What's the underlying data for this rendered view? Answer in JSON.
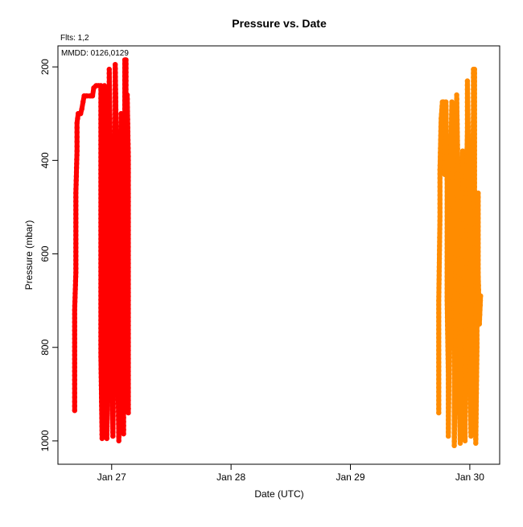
{
  "chart_data": {
    "type": "scatter",
    "title": "Pressure  vs. Date",
    "xlabel": "Date (UTC)",
    "ylabel": "Pressure (mbar)",
    "annotations": [
      "Flts: 1,2",
      "MMDD: 0126,0129"
    ],
    "x_ticks": [
      "Jan 27",
      "Jan 28",
      "Jan 29",
      "Jan 30"
    ],
    "y_ticks": [
      "200",
      "400",
      "600",
      "800",
      "1000"
    ],
    "y_reversed": true,
    "ylim": [
      1050,
      155
    ],
    "xlim_days_from_jan27": [
      -0.45,
      3.25
    ],
    "x_unit": "days after Jan 27 00:00 UTC",
    "grid": false,
    "series": [
      {
        "color": "#ff0000",
        "points": [
          [
            -0.31,
            935
          ],
          [
            -0.31,
            860
          ],
          [
            -0.31,
            720
          ],
          [
            -0.3,
            640
          ],
          [
            -0.3,
            560
          ],
          [
            -0.3,
            470
          ],
          [
            -0.29,
            380
          ],
          [
            -0.29,
            320
          ],
          [
            -0.28,
            300
          ],
          [
            -0.26,
            300
          ],
          [
            -0.25,
            290
          ],
          [
            -0.24,
            275
          ],
          [
            -0.23,
            262
          ],
          [
            -0.21,
            262
          ],
          [
            -0.18,
            262
          ],
          [
            -0.16,
            262
          ],
          [
            -0.15,
            245
          ],
          [
            -0.13,
            240
          ],
          [
            -0.11,
            240
          ],
          [
            -0.09,
            240
          ],
          [
            -0.09,
            420
          ],
          [
            -0.09,
            620
          ],
          [
            -0.09,
            820
          ],
          [
            -0.08,
            995
          ],
          [
            -0.07,
            850
          ],
          [
            -0.07,
            650
          ],
          [
            -0.07,
            450
          ],
          [
            -0.06,
            240
          ],
          [
            -0.05,
            420
          ],
          [
            -0.05,
            650
          ],
          [
            -0.04,
            880
          ],
          [
            -0.04,
            995
          ],
          [
            -0.03,
            820
          ],
          [
            -0.03,
            560
          ],
          [
            -0.02,
            330
          ],
          [
            -0.02,
            205
          ],
          [
            -0.01,
            390
          ],
          [
            0.0,
            640
          ],
          [
            0.0,
            860
          ],
          [
            0.01,
            990
          ],
          [
            0.02,
            800
          ],
          [
            0.02,
            540
          ],
          [
            0.03,
            300
          ],
          [
            0.03,
            195
          ],
          [
            0.04,
            380
          ],
          [
            0.05,
            620
          ],
          [
            0.05,
            820
          ],
          [
            0.06,
            1000
          ],
          [
            0.07,
            760
          ],
          [
            0.07,
            500
          ],
          [
            0.08,
            300
          ],
          [
            0.09,
            540
          ],
          [
            0.09,
            780
          ],
          [
            0.1,
            985
          ],
          [
            0.1,
            700
          ],
          [
            0.11,
            420
          ],
          [
            0.11,
            185
          ],
          [
            0.12,
            185
          ],
          [
            0.12,
            400
          ],
          [
            0.13,
            600
          ],
          [
            0.13,
            800
          ],
          [
            0.14,
            940
          ],
          [
            0.14,
            700
          ],
          [
            0.14,
            400
          ],
          [
            0.13,
            260
          ]
        ]
      },
      {
        "color": "#ff8c00",
        "points": [
          [
            2.74,
            940
          ],
          [
            2.74,
            850
          ],
          [
            2.74,
            700
          ],
          [
            2.75,
            520
          ],
          [
            2.75,
            420
          ],
          [
            2.76,
            310
          ],
          [
            2.77,
            275
          ],
          [
            2.78,
            275
          ],
          [
            2.79,
            430
          ],
          [
            2.8,
            275
          ],
          [
            2.81,
            450
          ],
          [
            2.81,
            700
          ],
          [
            2.82,
            860
          ],
          [
            2.82,
            990
          ],
          [
            2.83,
            760
          ],
          [
            2.83,
            520
          ],
          [
            2.84,
            400
          ],
          [
            2.85,
            275
          ],
          [
            2.86,
            560
          ],
          [
            2.87,
            830
          ],
          [
            2.87,
            1010
          ],
          [
            2.88,
            820
          ],
          [
            2.88,
            600
          ],
          [
            2.89,
            400
          ],
          [
            2.89,
            260
          ],
          [
            2.9,
            420
          ],
          [
            2.91,
            700
          ],
          [
            2.91,
            900
          ],
          [
            2.92,
            1005
          ],
          [
            2.93,
            820
          ],
          [
            2.93,
            600
          ],
          [
            2.94,
            380
          ],
          [
            2.95,
            560
          ],
          [
            2.96,
            800
          ],
          [
            2.96,
            1000
          ],
          [
            2.97,
            700
          ],
          [
            2.97,
            480
          ],
          [
            2.98,
            330
          ],
          [
            2.98,
            230
          ],
          [
            2.99,
            400
          ],
          [
            3.0,
            620
          ],
          [
            3.0,
            850
          ],
          [
            3.01,
            990
          ],
          [
            3.02,
            760
          ],
          [
            3.02,
            500
          ],
          [
            3.03,
            300
          ],
          [
            3.03,
            205
          ],
          [
            3.04,
            205
          ],
          [
            3.04,
            500
          ],
          [
            3.05,
            800
          ],
          [
            3.05,
            1005
          ],
          [
            3.06,
            800
          ],
          [
            3.06,
            600
          ],
          [
            3.07,
            470
          ],
          [
            3.07,
            640
          ],
          [
            3.08,
            750
          ],
          [
            3.09,
            690
          ]
        ]
      }
    ]
  }
}
